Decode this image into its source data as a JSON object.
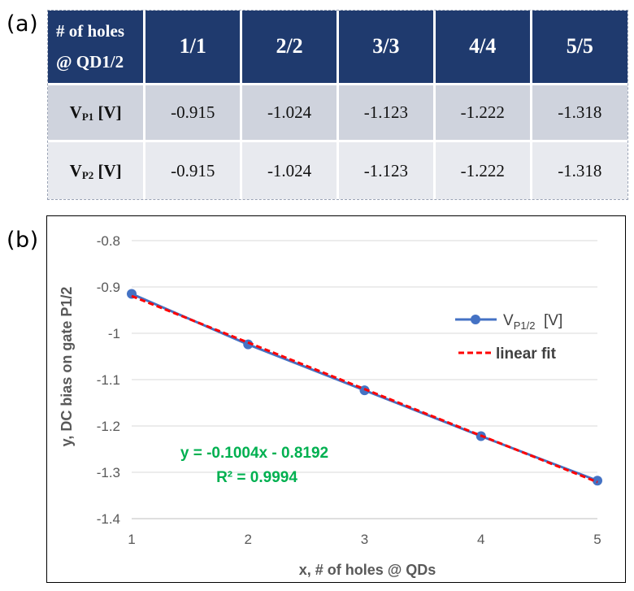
{
  "panels": {
    "a": "(a)",
    "b": "(b)"
  },
  "table": {
    "corner_line1": "# of holes",
    "corner_line2": "@ QD1/2",
    "columns": [
      "1/1",
      "2/2",
      "3/3",
      "4/4",
      "5/5"
    ],
    "rows": [
      {
        "label_main": "V",
        "label_sub": "P1",
        "label_unit": " [V]",
        "values": [
          "-0.915",
          "-1.024",
          "-1.123",
          "-1.222",
          "-1.318"
        ]
      },
      {
        "label_main": "V",
        "label_sub": "P2",
        "label_unit": " [V]",
        "values": [
          "-0.915",
          "-1.024",
          "-1.123",
          "-1.222",
          "-1.318"
        ]
      }
    ]
  },
  "chart_data": {
    "type": "line",
    "title": "",
    "xlabel": "x, # of holes @ QDs",
    "ylabel": "y, DC bias on gate  P1/2",
    "xlim": [
      1,
      5
    ],
    "ylim": [
      -1.4,
      -0.8
    ],
    "xticks": [
      "1",
      "2",
      "3",
      "4",
      "5"
    ],
    "yticks": [
      "-0.8",
      "-0.9",
      "-1",
      "-1.1",
      "-1.2",
      "-1.3",
      "-1.4"
    ],
    "grid": "horizontal",
    "legend_position": "right",
    "series": [
      {
        "name": "V",
        "name_sub": "P1/2",
        "name_unit": "  [V]",
        "x": [
          1,
          2,
          3,
          4,
          5
        ],
        "values": [
          -0.915,
          -1.024,
          -1.123,
          -1.222,
          -1.318
        ],
        "color": "#4472c4",
        "style": "solid-markers"
      },
      {
        "name": "linear fit",
        "slope": -0.1004,
        "intercept": -0.8192,
        "x": [
          1,
          5
        ],
        "color": "#ff0000",
        "style": "dashed"
      }
    ],
    "annotations": [
      "y = -0.1004x - 0.8192",
      "R² = 0.9994"
    ]
  }
}
